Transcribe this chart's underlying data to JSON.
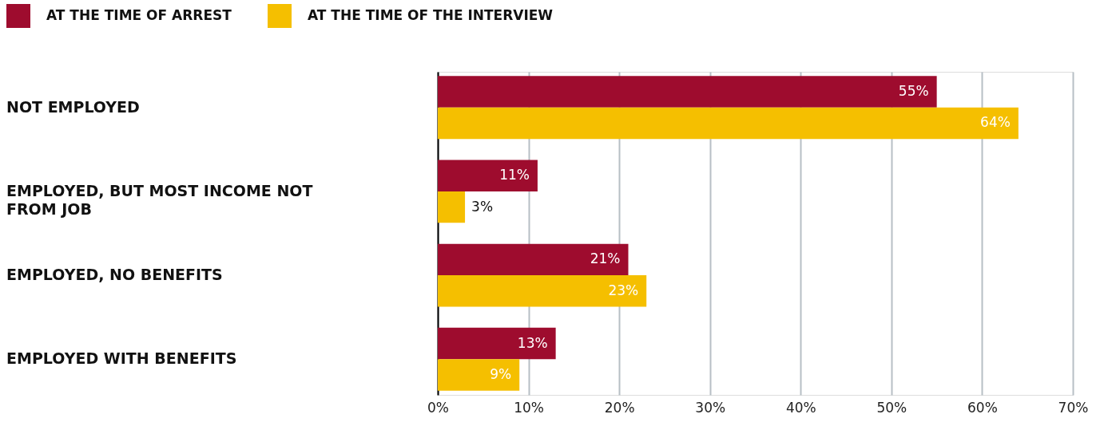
{
  "chart_data": {
    "type": "bar",
    "orientation": "horizontal",
    "categories": [
      "NOT EMPLOYED",
      "EMPLOYED, BUT MOST INCOME NOT FROM JOB",
      "EMPLOYED, NO BENEFITS",
      "EMPLOYED WITH BENEFITS"
    ],
    "series": [
      {
        "name": "AT THE TIME OF ARREST",
        "color": "#9e0c2e",
        "values": [
          55,
          11,
          21,
          13
        ],
        "value_labels": [
          "55%",
          "11%",
          "21%",
          "13%"
        ]
      },
      {
        "name": "AT THE TIME OF THE INTERVIEW",
        "color": "#f5bf00",
        "values": [
          64,
          3,
          23,
          9
        ],
        "value_labels": [
          "64%",
          "3%",
          "23%",
          "9%"
        ]
      }
    ],
    "xlim": [
      0,
      70
    ],
    "xticks": [
      {
        "value": 0,
        "label": "0%"
      },
      {
        "value": 10,
        "label": "10%"
      },
      {
        "value": 20,
        "label": "20%"
      },
      {
        "value": 30,
        "label": "30%"
      },
      {
        "value": 40,
        "label": "40%"
      },
      {
        "value": 50,
        "label": "50%"
      },
      {
        "value": 60,
        "label": "60%"
      },
      {
        "value": 70,
        "label": "70%"
      }
    ],
    "grid": "x",
    "legend": "top left"
  }
}
